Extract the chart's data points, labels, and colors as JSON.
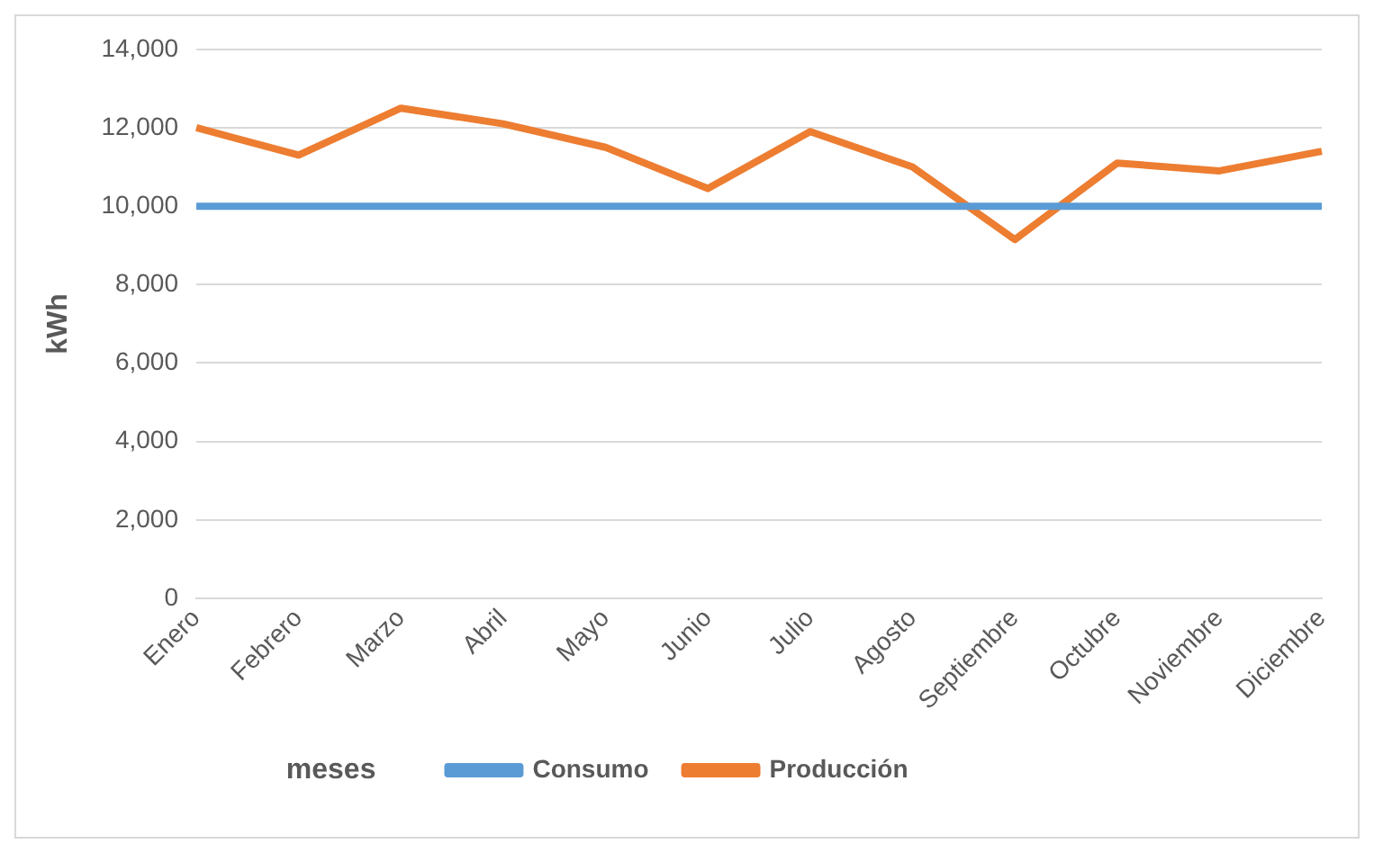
{
  "chart_data": {
    "type": "line",
    "xlabel": "meses",
    "ylabel": "kWh",
    "categories": [
      "Enero",
      "Febrero",
      "Marzo",
      "Abril",
      "Mayo",
      "Junio",
      "Julio",
      "Agosto",
      "Septiembre",
      "Octubre",
      "Noviembre",
      "Diciembre"
    ],
    "series": [
      {
        "name": "Consumo",
        "color": "#5b9bd5",
        "values": [
          10000,
          10000,
          10000,
          10000,
          10000,
          10000,
          10000,
          10000,
          10000,
          10000,
          10000,
          10000
        ]
      },
      {
        "name": "Producción",
        "color": "#ed7d31",
        "values": [
          12000,
          11300,
          12500,
          12100,
          11500,
          10450,
          11900,
          11000,
          9150,
          11100,
          10900,
          11400
        ]
      }
    ],
    "ylim": [
      0,
      14000
    ],
    "yticks": [
      0,
      {
        "value": 2000,
        "label": "2,000"
      },
      {
        "value": 4000,
        "label": "4,000"
      },
      {
        "value": 6000,
        "label": "6,000"
      },
      {
        "value": 8000,
        "label": "8,000"
      },
      {
        "value": 10000,
        "label": "10,000"
      },
      {
        "value": 12000,
        "label": "12,000"
      },
      {
        "value": 14000,
        "label": "14,000"
      }
    ],
    "grid": "y",
    "legend": "bottom",
    "marker": "none",
    "line_style": "solid"
  }
}
